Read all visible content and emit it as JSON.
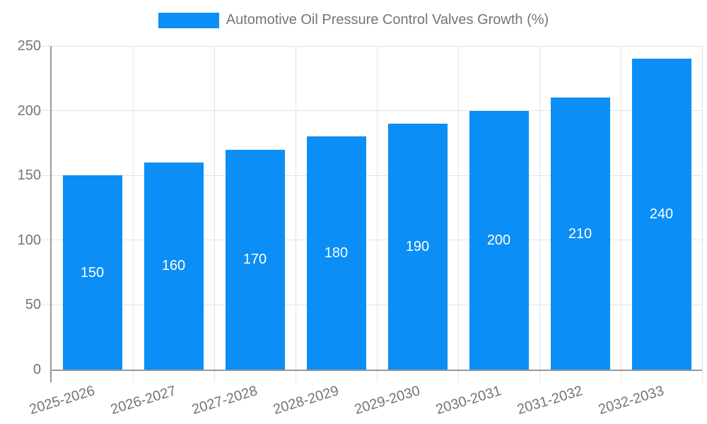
{
  "chart_data": {
    "type": "bar",
    "title": "Automotive Oil Pressure Control Valves Growth (%)",
    "categories": [
      "2025-2026",
      "2026-2027",
      "2027-2028",
      "2028-2029",
      "2029-2030",
      "2030-2031",
      "2031-2032",
      "2032-2033"
    ],
    "values": [
      150,
      160,
      170,
      180,
      190,
      200,
      210,
      240
    ],
    "bar_labels": [
      "150",
      "160",
      "170",
      "180",
      "190",
      "200",
      "210",
      "240"
    ],
    "xlabel": "",
    "ylabel": "",
    "ylim": [
      0,
      250
    ],
    "yticks": [
      0,
      50,
      100,
      150,
      200,
      250
    ],
    "grid": true,
    "legend_position": "top-center",
    "colors": {
      "bar": "#0b8ef5",
      "bar_label": "#ffffff",
      "axis": "#999999",
      "gridline": "#e4e4e4",
      "tick_text": "#757575"
    }
  },
  "legend": {
    "label": "Automotive Oil Pressure Control Valves Growth (%)",
    "swatch_color": "#0b8ef5"
  }
}
